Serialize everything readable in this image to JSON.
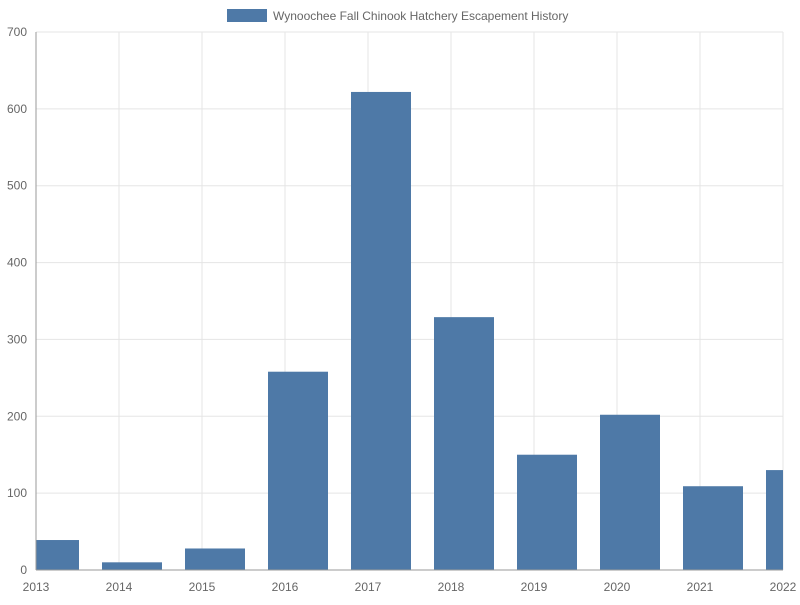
{
  "chart_data": {
    "type": "bar",
    "categories": [
      "2013",
      "2014",
      "2015",
      "2016",
      "2017",
      "2018",
      "2019",
      "2020",
      "2021",
      "2022"
    ],
    "series": [
      {
        "name": "Wynoochee Fall Chinook Hatchery Escapement History",
        "values": [
          39,
          10,
          28,
          258,
          622,
          329,
          150,
          202,
          109,
          130
        ],
        "color": "#4e79a7"
      }
    ],
    "ylim": [
      0,
      700
    ],
    "yticks": [
      0,
      100,
      200,
      300,
      400,
      500,
      600,
      700
    ],
    "grid": true,
    "legend_position": "top-center"
  }
}
